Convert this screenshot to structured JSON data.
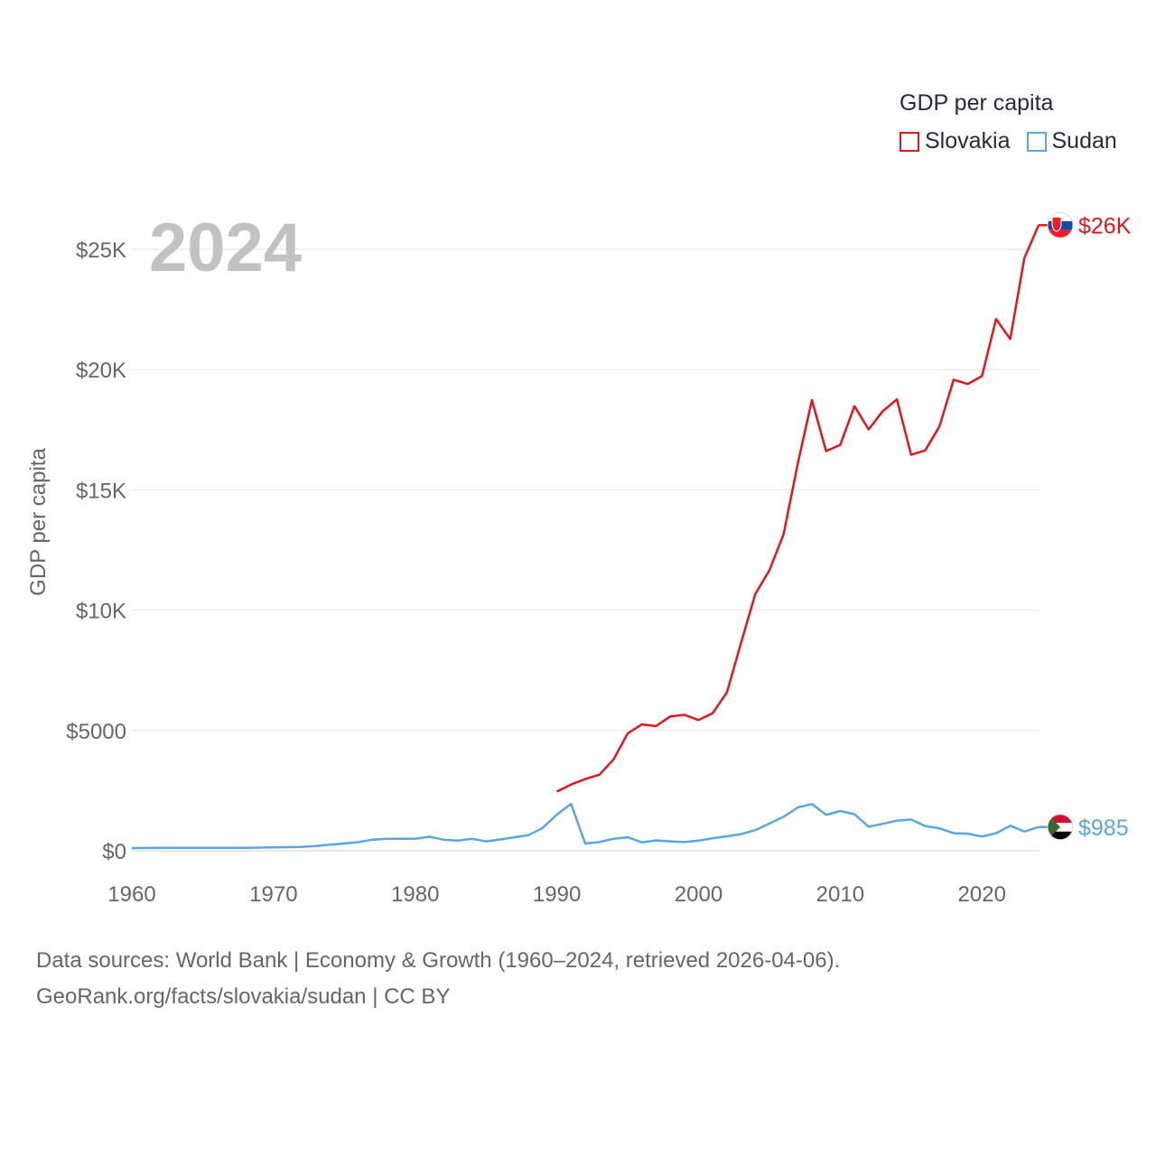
{
  "chart_data": {
    "type": "line",
    "title": "GDP per capita",
    "ylabel": "GDP per capita",
    "xlabel": "",
    "year_label": "2024",
    "xlim": [
      1960,
      2024
    ],
    "ylim": [
      0,
      26000
    ],
    "x_ticks": [
      1960,
      1970,
      1980,
      1990,
      2000,
      2010,
      2020
    ],
    "x_tick_labels": [
      "1960",
      "1970",
      "1980",
      "1990",
      "2000",
      "2010",
      "2020"
    ],
    "y_ticks": [
      0,
      5000,
      10000,
      15000,
      20000,
      25000
    ],
    "y_tick_labels": [
      "$0",
      "$5000",
      "$10K",
      "$15K",
      "$20K",
      "$25K"
    ],
    "legend_position": "top-right",
    "series": [
      {
        "name": "Slovakia",
        "color": "#e8141b",
        "end_label": "$26K",
        "flag": "slovakia-flag",
        "x": [
          1990,
          1991,
          1992,
          1993,
          1994,
          1995,
          1996,
          1997,
          1998,
          1999,
          2000,
          2001,
          2002,
          2003,
          2004,
          2005,
          2006,
          2007,
          2008,
          2009,
          2010,
          2011,
          2012,
          2013,
          2014,
          2015,
          2016,
          2017,
          2018,
          2019,
          2020,
          2021,
          2022,
          2023,
          2024
        ],
        "values": [
          2460,
          2750,
          2980,
          3160,
          3800,
          4880,
          5250,
          5180,
          5580,
          5650,
          5430,
          5720,
          6580,
          8650,
          10670,
          11650,
          13150,
          16080,
          18730,
          16610,
          16870,
          18480,
          17510,
          18270,
          18760,
          16460,
          16640,
          17630,
          19580,
          19400,
          19730,
          22100,
          21270,
          24640,
          26000
        ]
      },
      {
        "name": "Sudan",
        "color": "#5aa6e3",
        "end_label": "$985",
        "flag": "sudan-flag",
        "x": [
          1960,
          1961,
          1962,
          1963,
          1964,
          1965,
          1966,
          1967,
          1968,
          1969,
          1970,
          1971,
          1972,
          1973,
          1974,
          1975,
          1976,
          1977,
          1978,
          1979,
          1980,
          1981,
          1982,
          1983,
          1984,
          1985,
          1986,
          1987,
          1988,
          1989,
          1990,
          1991,
          1992,
          1993,
          1994,
          1995,
          1996,
          1997,
          1998,
          1999,
          2000,
          2001,
          2002,
          2003,
          2004,
          2005,
          2006,
          2007,
          2008,
          2009,
          2010,
          2011,
          2012,
          2013,
          2014,
          2015,
          2016,
          2017,
          2018,
          2019,
          2020,
          2021,
          2022,
          2023,
          2024
        ],
        "values": [
          110,
          115,
          120,
          120,
          120,
          120,
          120,
          125,
          125,
          130,
          140,
          150,
          160,
          200,
          250,
          300,
          360,
          460,
          500,
          500,
          500,
          580,
          460,
          420,
          500,
          390,
          470,
          560,
          650,
          950,
          1500,
          1950,
          300,
          360,
          500,
          560,
          350,
          430,
          390,
          360,
          420,
          520,
          600,
          690,
          860,
          1130,
          1410,
          1800,
          1940,
          1490,
          1650,
          1520,
          1000,
          1120,
          1250,
          1300,
          1030,
          930,
          730,
          710,
          590,
          730,
          1040,
          800,
          985
        ]
      }
    ]
  },
  "legend": {
    "title": "GDP per capita"
  },
  "sources": {
    "line1": "Data sources: World Bank | Economy & Growth (1960–2024, retrieved 2026-04-06).",
    "line2": "GeoRank.org/facts/slovakia/sudan | CC BY"
  }
}
